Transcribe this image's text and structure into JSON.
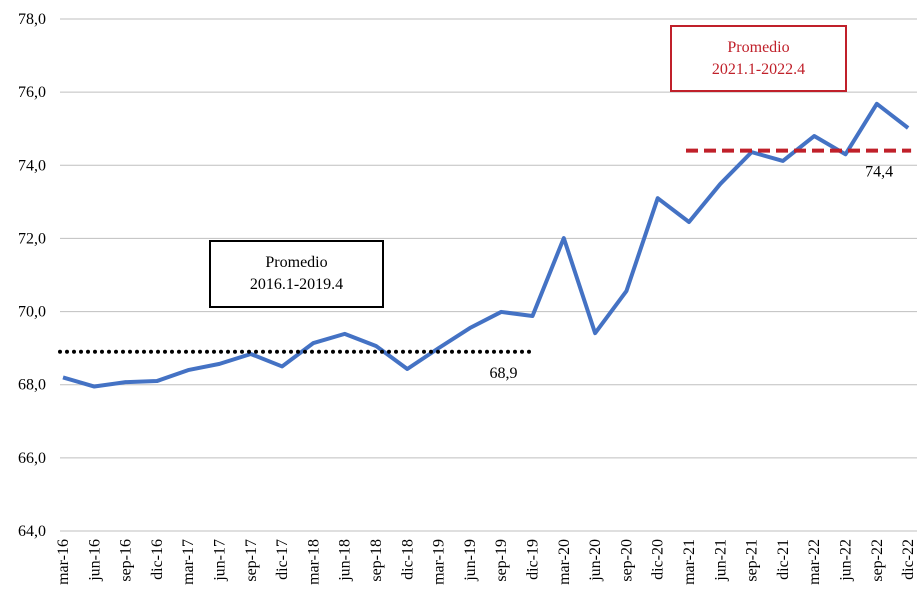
{
  "chart_data": {
    "type": "line",
    "categories": [
      "mar-16",
      "jun-16",
      "sep-16",
      "dic-16",
      "mar-17",
      "jun-17",
      "sep-17",
      "dic-17",
      "mar-18",
      "jun-18",
      "sep-18",
      "dic-18",
      "mar-19",
      "jun-19",
      "sep-19",
      "dic-19",
      "mar-20",
      "jun-20",
      "sep-20",
      "dic-20",
      "mar-21",
      "jun-21",
      "sep-21",
      "dic-21",
      "mar-22",
      "jun-22",
      "sep-22",
      "dic-22"
    ],
    "series": [
      {
        "color": "#4472c4",
        "values": [
          68.2,
          67.95,
          68.07,
          68.1,
          68.4,
          68.57,
          68.84,
          68.5,
          69.14,
          69.39,
          69.06,
          68.43,
          69.0,
          69.55,
          69.99,
          69.88,
          72.01,
          69.41,
          70.56,
          73.1,
          72.45,
          73.49,
          74.36,
          74.12,
          74.8,
          74.3,
          75.68,
          75.02
        ]
      }
    ],
    "ylim": [
      64,
      78
    ],
    "yticks": [
      {
        "value": 64,
        "label": "64,0"
      },
      {
        "value": 66,
        "label": "66,0"
      },
      {
        "value": 68,
        "label": "68,0"
      },
      {
        "value": 70,
        "label": "70,0"
      },
      {
        "value": 72,
        "label": "72,0"
      },
      {
        "value": 74,
        "label": "74,0"
      },
      {
        "value": 76,
        "label": "76,0"
      },
      {
        "value": 78,
        "label": "78,0"
      }
    ],
    "grid": true,
    "averages": [
      {
        "value": 68.9,
        "value_label": "68,9",
        "span": [
          "mar-16",
          "dic-19"
        ],
        "color": "#000000",
        "style": "dotted",
        "note": [
          "Promedio",
          "2016.1-2019.4"
        ]
      },
      {
        "value": 74.4,
        "value_label": "74,4",
        "span": [
          "mar-21",
          "dic-22"
        ],
        "color": "#c0202a",
        "style": "dashed",
        "note": [
          "Promedio",
          "2021.1-2022.4"
        ]
      }
    ]
  }
}
